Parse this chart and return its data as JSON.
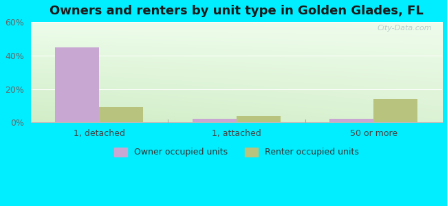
{
  "title": "Owners and renters by unit type in Golden Glades, FL",
  "categories": [
    "1, detached",
    "1, attached",
    "50 or more"
  ],
  "owner_values": [
    45.0,
    2.0,
    2.0
  ],
  "renter_values": [
    9.0,
    4.0,
    14.0
  ],
  "owner_color": "#c8a8d2",
  "renter_color": "#b8c47e",
  "ylim": [
    0,
    60
  ],
  "yticks": [
    0,
    20,
    40,
    60
  ],
  "ytick_labels": [
    "0%",
    "20%",
    "40%",
    "60%"
  ],
  "bar_width": 0.32,
  "outer_background": "#00eeff",
  "watermark": "City-Data.com",
  "legend_owner": "Owner occupied units",
  "legend_renter": "Renter occupied units",
  "title_fontsize": 13,
  "tick_fontsize": 9,
  "legend_fontsize": 9,
  "bg_color_topleft": "#d8efd0",
  "bg_color_topright": "#edfaec",
  "bg_color_bottomleft": "#cce8c4",
  "bg_color_bottomright": "#e8f8e4"
}
